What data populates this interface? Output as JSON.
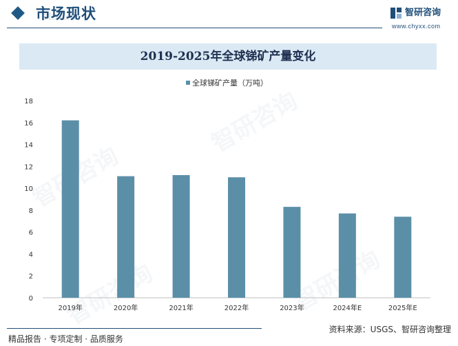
{
  "header": {
    "section_title": "市场现状",
    "section_title_bg": "status"
  },
  "brand": {
    "name": "智研咨询",
    "url": "www.chyxx.com",
    "color": "#1f4e79"
  },
  "chart_data": {
    "type": "bar",
    "title": "2019-2025年全球锑矿产量变化",
    "categories": [
      "2019年",
      "2020年",
      "2021年",
      "2022年",
      "2023年",
      "2024年E",
      "2025年E"
    ],
    "series": [
      {
        "name": "全球锑矿产量（万吨）",
        "values": [
          16.2,
          11.1,
          11.2,
          11.0,
          8.3,
          7.7,
          7.4
        ],
        "color": "#5b8fa8"
      }
    ],
    "yticks": [
      0,
      2,
      4,
      6,
      8,
      10,
      12,
      14,
      16,
      18
    ],
    "ylim": [
      0,
      18
    ],
    "xlabel": "",
    "ylabel": "",
    "legend_position": "top-center",
    "grid": false
  },
  "footer": {
    "left_text": "精品报告 · 专项定制 · 品质服务",
    "source": "资料来源：USGS、智研咨询整理"
  },
  "watermark": {
    "text": "智研咨询"
  }
}
